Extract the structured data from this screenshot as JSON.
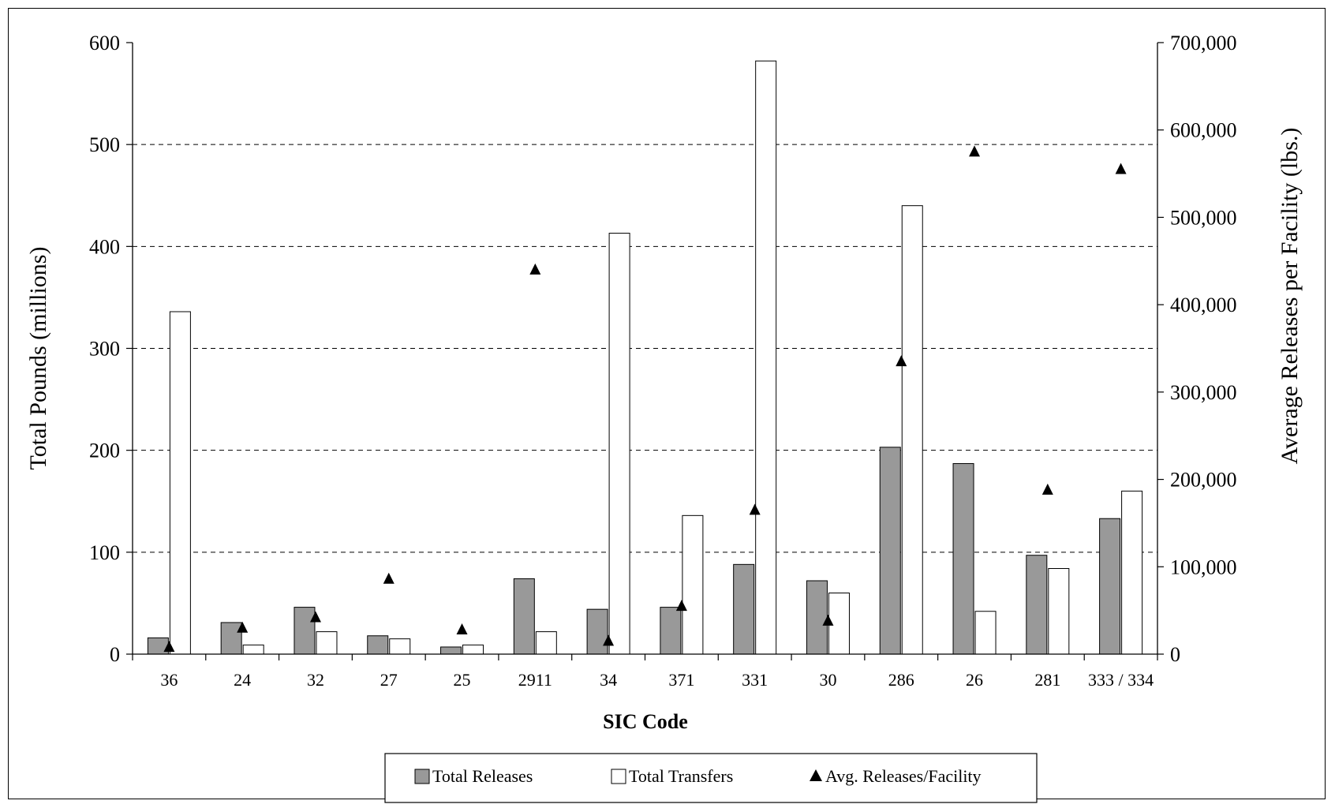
{
  "chart_data": {
    "type": "bar",
    "xlabel": "SIC Code",
    "ylabel": "Total Pounds (millions)",
    "y2label": "Average Releases per Facility (lbs.)",
    "categories": [
      "36",
      "24",
      "32",
      "27",
      "25",
      "2911",
      "34",
      "371",
      "331",
      "30",
      "286",
      "26",
      "281",
      "333 / 334"
    ],
    "ylim": [
      0,
      600
    ],
    "y_ticks": [
      "0",
      "100",
      "200",
      "300",
      "400",
      "500",
      "600"
    ],
    "y2lim": [
      0,
      700000
    ],
    "y2_ticks": [
      "0",
      "100,000",
      "200,000",
      "300,000",
      "400,000",
      "500,000",
      "600,000",
      "700,000"
    ],
    "grid": "horizontal dashed",
    "legend_position": "bottom",
    "series": [
      {
        "name": "Total Releases",
        "type": "bar",
        "axis": "left",
        "color": "#999999",
        "values": [
          16,
          31,
          46,
          18,
          7,
          74,
          44,
          46,
          88,
          72,
          203,
          187,
          97,
          133
        ]
      },
      {
        "name": "Total Transfers",
        "type": "bar",
        "axis": "left",
        "color": "#ffffff",
        "values": [
          336,
          9,
          22,
          15,
          9,
          22,
          413,
          136,
          582,
          60,
          440,
          42,
          84,
          160
        ]
      },
      {
        "name": "Avg. Releases/Facility",
        "type": "marker",
        "marker": "triangle",
        "axis": "right",
        "color": "#000000",
        "values": [
          8000,
          30000,
          42000,
          86000,
          28000,
          440000,
          15000,
          55000,
          165000,
          38000,
          335000,
          575000,
          188000,
          555000
        ]
      }
    ]
  }
}
